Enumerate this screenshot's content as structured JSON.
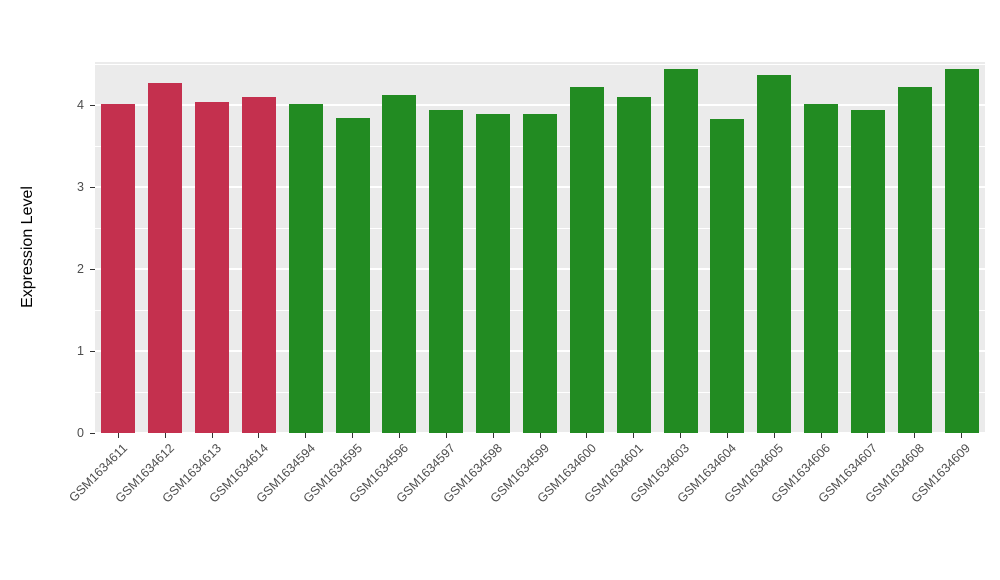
{
  "figure": {
    "background": "#FFFFFF"
  },
  "chart_data": {
    "type": "bar",
    "title": "",
    "xlabel": "",
    "ylabel": "Expression Level",
    "ylim": [
      0,
      4.53
    ],
    "ytick_values": [
      0,
      1,
      2,
      3,
      4
    ],
    "ytick_labels": [
      "0",
      "1",
      "2",
      "3",
      "4"
    ],
    "minor_gridline_values": [
      0.5,
      1.5,
      2.5,
      3.5,
      4.5
    ],
    "grid": true,
    "legend": "none",
    "panel_background": "#EBEBEB",
    "gridline_color": "#FFFFFF",
    "tick_text_color": "#4D4D4D",
    "axis_title_color": "#000000",
    "group_colors": {
      "red_group": "#C4304E",
      "green_group": "#228B22"
    },
    "categories": [
      "GSM1634611",
      "GSM1634612",
      "GSM1634613",
      "GSM1634614",
      "GSM1634594",
      "GSM1634595",
      "GSM1634596",
      "GSM1634597",
      "GSM1634598",
      "GSM1634599",
      "GSM1634600",
      "GSM1634601",
      "GSM1634603",
      "GSM1634604",
      "GSM1634605",
      "GSM1634606",
      "GSM1634607",
      "GSM1634608",
      "GSM1634609"
    ],
    "values": [
      4.02,
      4.27,
      4.04,
      4.1,
      4.02,
      3.85,
      4.13,
      3.95,
      3.9,
      3.9,
      4.22,
      4.1,
      4.45,
      3.83,
      4.37,
      4.02,
      3.95,
      4.22,
      4.45
    ],
    "bar_colors": [
      "#C4304E",
      "#C4304E",
      "#C4304E",
      "#C4304E",
      "#228B22",
      "#228B22",
      "#228B22",
      "#228B22",
      "#228B22",
      "#228B22",
      "#228B22",
      "#228B22",
      "#228B22",
      "#228B22",
      "#228B22",
      "#228B22",
      "#228B22",
      "#228B22",
      "#228B22"
    ]
  }
}
